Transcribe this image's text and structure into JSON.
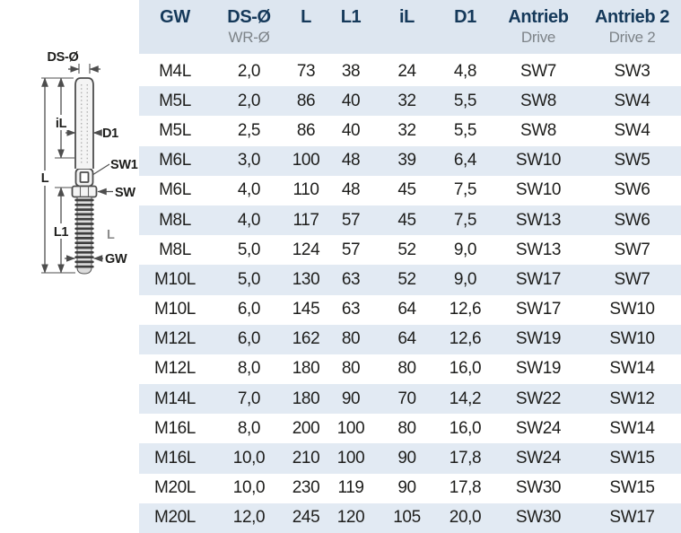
{
  "diagram": {
    "labels": {
      "ds_diameter": "DS-Ø",
      "inner_length": "iL",
      "d1": "D1",
      "sw1": "SW1",
      "overall_length": "L",
      "sw": "SW",
      "l1": "L1",
      "thread_mark": "L",
      "thread": "GW"
    }
  },
  "table": {
    "columns": [
      {
        "key": "gw",
        "label": "GW",
        "sublabel": ""
      },
      {
        "key": "ds",
        "label": "DS-Ø",
        "sublabel": "WR-Ø"
      },
      {
        "key": "l",
        "label": "L",
        "sublabel": ""
      },
      {
        "key": "l1",
        "label": "L1",
        "sublabel": ""
      },
      {
        "key": "il",
        "label": "iL",
        "sublabel": ""
      },
      {
        "key": "d1",
        "label": "D1",
        "sublabel": ""
      },
      {
        "key": "antrieb",
        "label": "Antrieb",
        "sublabel": "Drive"
      },
      {
        "key": "antrieb2",
        "label": "Antrieb 2",
        "sublabel": "Drive 2"
      }
    ],
    "rows": [
      [
        "M4L",
        "2,0",
        "73",
        "38",
        "24",
        "4,8",
        "SW7",
        "SW3"
      ],
      [
        "M5L",
        "2,0",
        "86",
        "40",
        "32",
        "5,5",
        "SW8",
        "SW4"
      ],
      [
        "M5L",
        "2,5",
        "86",
        "40",
        "32",
        "5,5",
        "SW8",
        "SW4"
      ],
      [
        "M6L",
        "3,0",
        "100",
        "48",
        "39",
        "6,4",
        "SW10",
        "SW5"
      ],
      [
        "M6L",
        "4,0",
        "110",
        "48",
        "45",
        "7,5",
        "SW10",
        "SW6"
      ],
      [
        "M8L",
        "4,0",
        "117",
        "57",
        "45",
        "7,5",
        "SW13",
        "SW6"
      ],
      [
        "M8L",
        "5,0",
        "124",
        "57",
        "52",
        "9,0",
        "SW13",
        "SW7"
      ],
      [
        "M10L",
        "5,0",
        "130",
        "63",
        "52",
        "9,0",
        "SW17",
        "SW7"
      ],
      [
        "M10L",
        "6,0",
        "145",
        "63",
        "64",
        "12,6",
        "SW17",
        "SW10"
      ],
      [
        "M12L",
        "6,0",
        "162",
        "80",
        "64",
        "12,6",
        "SW19",
        "SW10"
      ],
      [
        "M12L",
        "8,0",
        "180",
        "80",
        "80",
        "16,0",
        "SW19",
        "SW14"
      ],
      [
        "M14L",
        "7,0",
        "180",
        "90",
        "70",
        "14,2",
        "SW22",
        "SW12"
      ],
      [
        "M16L",
        "8,0",
        "200",
        "100",
        "80",
        "16,0",
        "SW24",
        "SW14"
      ],
      [
        "M16L",
        "10,0",
        "210",
        "100",
        "90",
        "17,8",
        "SW24",
        "SW15"
      ],
      [
        "M20L",
        "10,0",
        "230",
        "119",
        "90",
        "17,8",
        "SW30",
        "SW15"
      ],
      [
        "M20L",
        "12,0",
        "245",
        "120",
        "105",
        "20,0",
        "SW30",
        "SW17"
      ]
    ]
  },
  "colors": {
    "header_bg": "#dde6f0",
    "stripe_bg": "#e2eaf3",
    "header_text": "#15395a",
    "subheader_text": "#7d8388",
    "data_text": "#1e1e1c",
    "drawing_line": "#4d4d4d"
  }
}
